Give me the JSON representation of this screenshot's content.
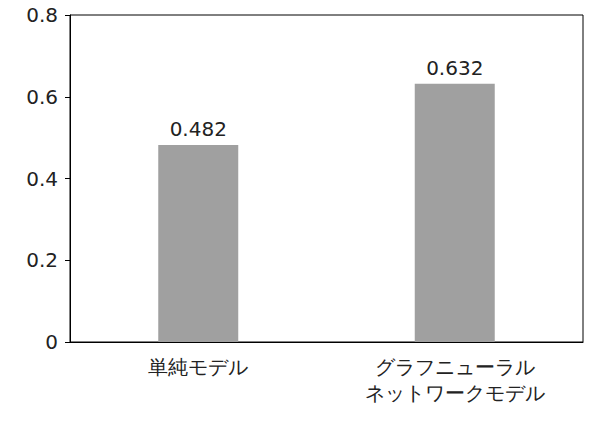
{
  "chart_data": {
    "type": "bar",
    "categories": [
      "単純モデル",
      "グラフニューラル\nネットワークモデル"
    ],
    "values": [
      0.482,
      0.632
    ],
    "color": "#a0a0a0",
    "ylim": [
      0,
      0.8
    ],
    "yticks": [
      0,
      0.2,
      0.4,
      0.6,
      0.8
    ],
    "grid": false,
    "data_labels": true
  }
}
